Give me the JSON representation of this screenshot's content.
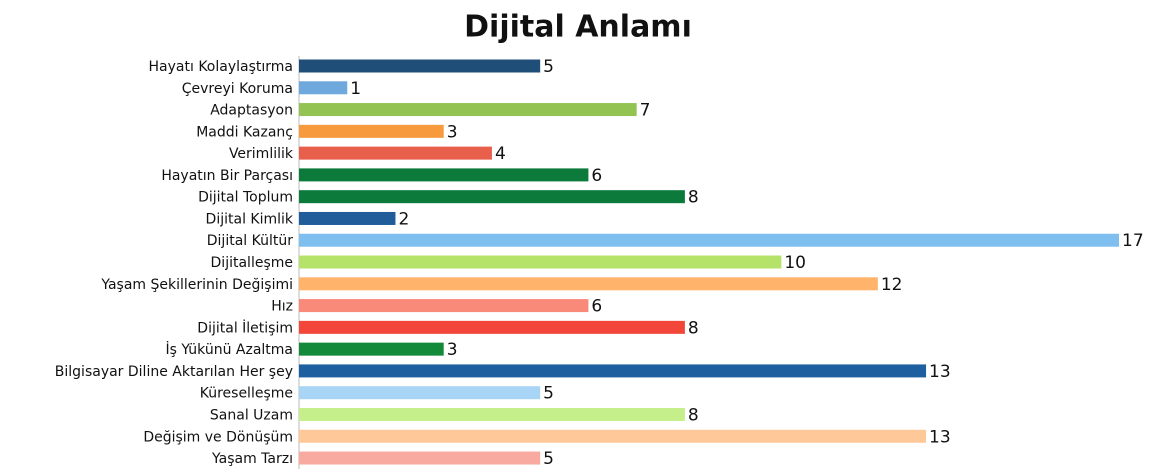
{
  "chart_data": {
    "type": "bar",
    "orientation": "horizontal",
    "title": "Dijital Anlamı",
    "categories": [
      "Hayatı Kolaylaştırma",
      "Çevreyi Koruma",
      "Adaptasyon",
      "Maddi Kazanç",
      "Verimlilik",
      "Hayatın Bir Parçası",
      "Dijital Toplum",
      "Dijital Kimlik",
      "Dijital Kültür",
      "Dijitalleşme",
      "Yaşam Şekillerinin Değişimi",
      "Hız",
      "Dijital İletişim",
      "İş Yükünü Azaltma",
      "Bilgisayar Diline Aktarılan Her şey",
      "Küreselleşme",
      "Sanal Uzam",
      "Değişim ve Dönüşüm",
      "Yaşam Tarzı"
    ],
    "values": [
      5,
      1,
      7,
      3,
      4,
      6,
      8,
      2,
      17,
      10,
      12,
      6,
      8,
      3,
      13,
      5,
      8,
      13,
      5
    ],
    "colors": [
      "#1f4e79",
      "#6fa8dc",
      "#92c353",
      "#f79a3e",
      "#e8604c",
      "#0b7a3b",
      "#0b7a3b",
      "#1f5c99",
      "#7fbfef",
      "#b5e36a",
      "#ffb36b",
      "#f98a7a",
      "#f2463a",
      "#138a3a",
      "#1e5fa0",
      "#a8d4f5",
      "#c4ef8a",
      "#ffc899",
      "#f9aaa0"
    ]
  }
}
